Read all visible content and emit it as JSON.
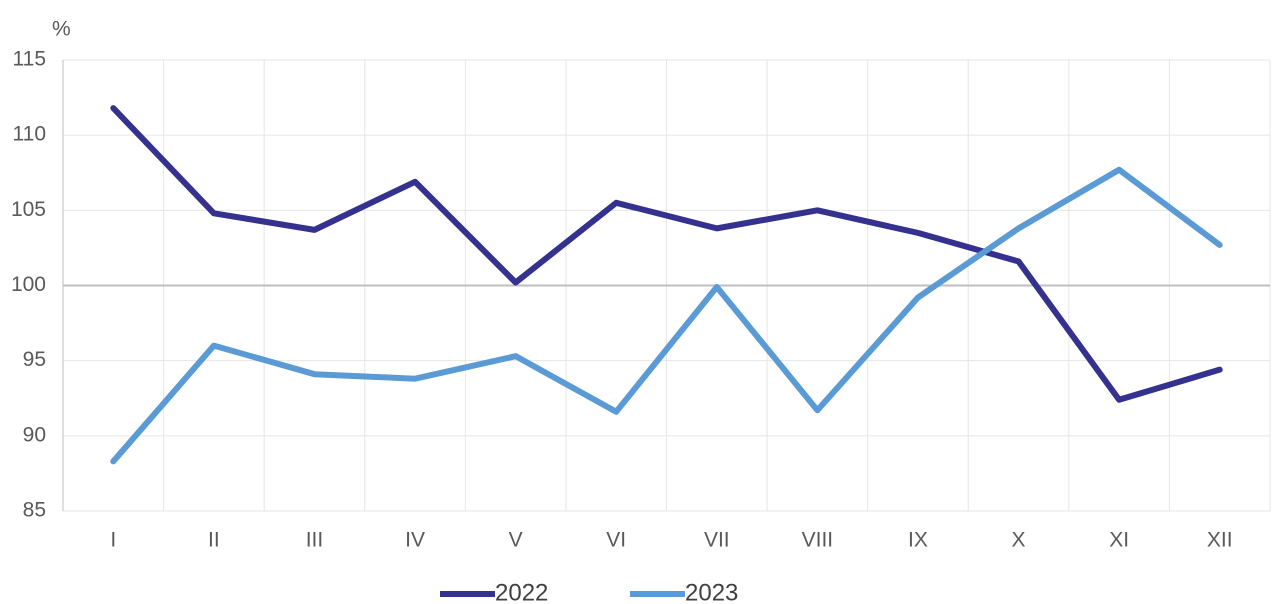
{
  "chart_data": {
    "type": "line",
    "y_label": "%",
    "categories": [
      "I",
      "II",
      "III",
      "IV",
      "V",
      "VI",
      "VII",
      "VIII",
      "IX",
      "X",
      "XI",
      "XII"
    ],
    "series": [
      {
        "name": "2022",
        "color": "#35318f",
        "values": [
          111.8,
          104.8,
          103.7,
          106.9,
          100.2,
          105.5,
          103.8,
          105.0,
          103.5,
          101.6,
          92.4,
          94.4
        ]
      },
      {
        "name": "2023",
        "color": "#5b9bd5",
        "values": [
          88.3,
          96.0,
          94.1,
          93.8,
          95.3,
          91.6,
          99.9,
          91.7,
          99.2,
          103.8,
          107.7,
          102.7
        ]
      }
    ],
    "ylim": [
      85,
      115
    ],
    "yticks": [
      85,
      90,
      95,
      100,
      105,
      110,
      115
    ],
    "grid": true,
    "reference_line": 100,
    "legend": "bottom"
  }
}
